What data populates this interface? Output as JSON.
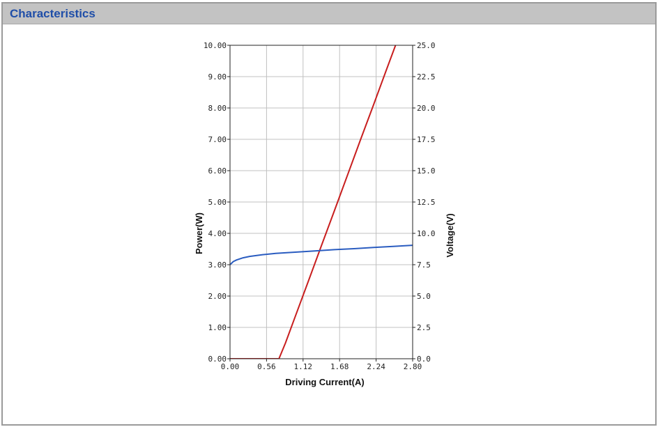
{
  "panel": {
    "title": "Characteristics"
  },
  "colors": {
    "header_bg": "#c3c3c3",
    "title": "#1f4ea8",
    "power_line": "#c81e1e",
    "voltage_line": "#2a5cc0",
    "grid": "#c0c0c0"
  },
  "chart_data": {
    "type": "line",
    "xlabel": "Driving Current(A)",
    "ylabel": "Power(W)",
    "y2label": "Voltage(V)",
    "xlim": [
      0,
      2.8
    ],
    "ylim": [
      0,
      10
    ],
    "y2lim": [
      0,
      25
    ],
    "grid": true,
    "x_ticks": [
      "0.00",
      "0.56",
      "1.12",
      "1.68",
      "2.24",
      "2.80"
    ],
    "y_ticks": [
      "0.00",
      "1.00",
      "2.00",
      "3.00",
      "4.00",
      "5.00",
      "6.00",
      "7.00",
      "8.00",
      "9.00",
      "10.00"
    ],
    "y2_ticks": [
      "0.0",
      "2.5",
      "5.0",
      "7.5",
      "10.0",
      "12.5",
      "15.0",
      "17.5",
      "20.0",
      "22.5",
      "25.0"
    ],
    "series": [
      {
        "axis": "left",
        "color": "#c81e1e",
        "x": [
          0,
          0.56,
          0.75,
          0.85,
          1.0,
          1.2,
          1.4,
          1.6,
          1.8,
          2.0,
          2.2,
          2.4,
          2.6,
          2.8
        ],
        "y": [
          0,
          0,
          0,
          0.5,
          1.35,
          2.47,
          3.6,
          4.72,
          5.85,
          6.98,
          8.1,
          9.23,
          10.35,
          11.48
        ]
      },
      {
        "axis": "right",
        "color": "#2a5cc0",
        "x": [
          0,
          0.05,
          0.1,
          0.2,
          0.3,
          0.5,
          0.7,
          1.0,
          1.3,
          1.6,
          1.9,
          2.2,
          2.5,
          2.8
        ],
        "y": [
          7.5,
          7.75,
          7.88,
          8.05,
          8.16,
          8.3,
          8.4,
          8.5,
          8.6,
          8.7,
          8.78,
          8.87,
          8.96,
          9.05
        ]
      }
    ]
  }
}
